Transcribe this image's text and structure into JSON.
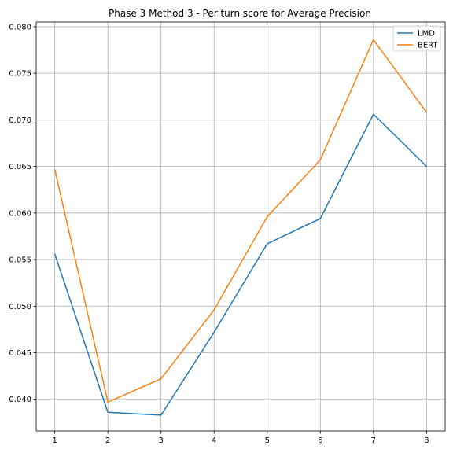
{
  "chart_data": {
    "type": "line",
    "title": "Phase 3 Method 3 - Per turn score for Average Precision",
    "xlabel": "",
    "ylabel": "",
    "x": [
      1,
      2,
      3,
      4,
      5,
      6,
      7,
      8
    ],
    "xticks": [
      "1",
      "2",
      "3",
      "4",
      "5",
      "6",
      "7",
      "8"
    ],
    "yticks": [
      "0.040",
      "0.045",
      "0.050",
      "0.055",
      "0.060",
      "0.065",
      "0.070",
      "0.075",
      "0.080"
    ],
    "ytick_values": [
      0.04,
      0.045,
      0.05,
      0.055,
      0.06,
      0.065,
      0.07,
      0.075,
      0.08
    ],
    "xlim": [
      0.65,
      8.35
    ],
    "ylim": [
      0.0366,
      0.0805
    ],
    "grid": true,
    "legend_position": "top-right",
    "series": [
      {
        "name": "LMD",
        "color": "#1f77b4",
        "values": [
          0.0556,
          0.0386,
          0.0383,
          0.0472,
          0.0567,
          0.0594,
          0.0706,
          0.065
        ]
      },
      {
        "name": "BERT",
        "color": "#ff7f0e",
        "values": [
          0.0647,
          0.0397,
          0.0422,
          0.0496,
          0.0596,
          0.0657,
          0.0786,
          0.0708
        ]
      }
    ]
  }
}
